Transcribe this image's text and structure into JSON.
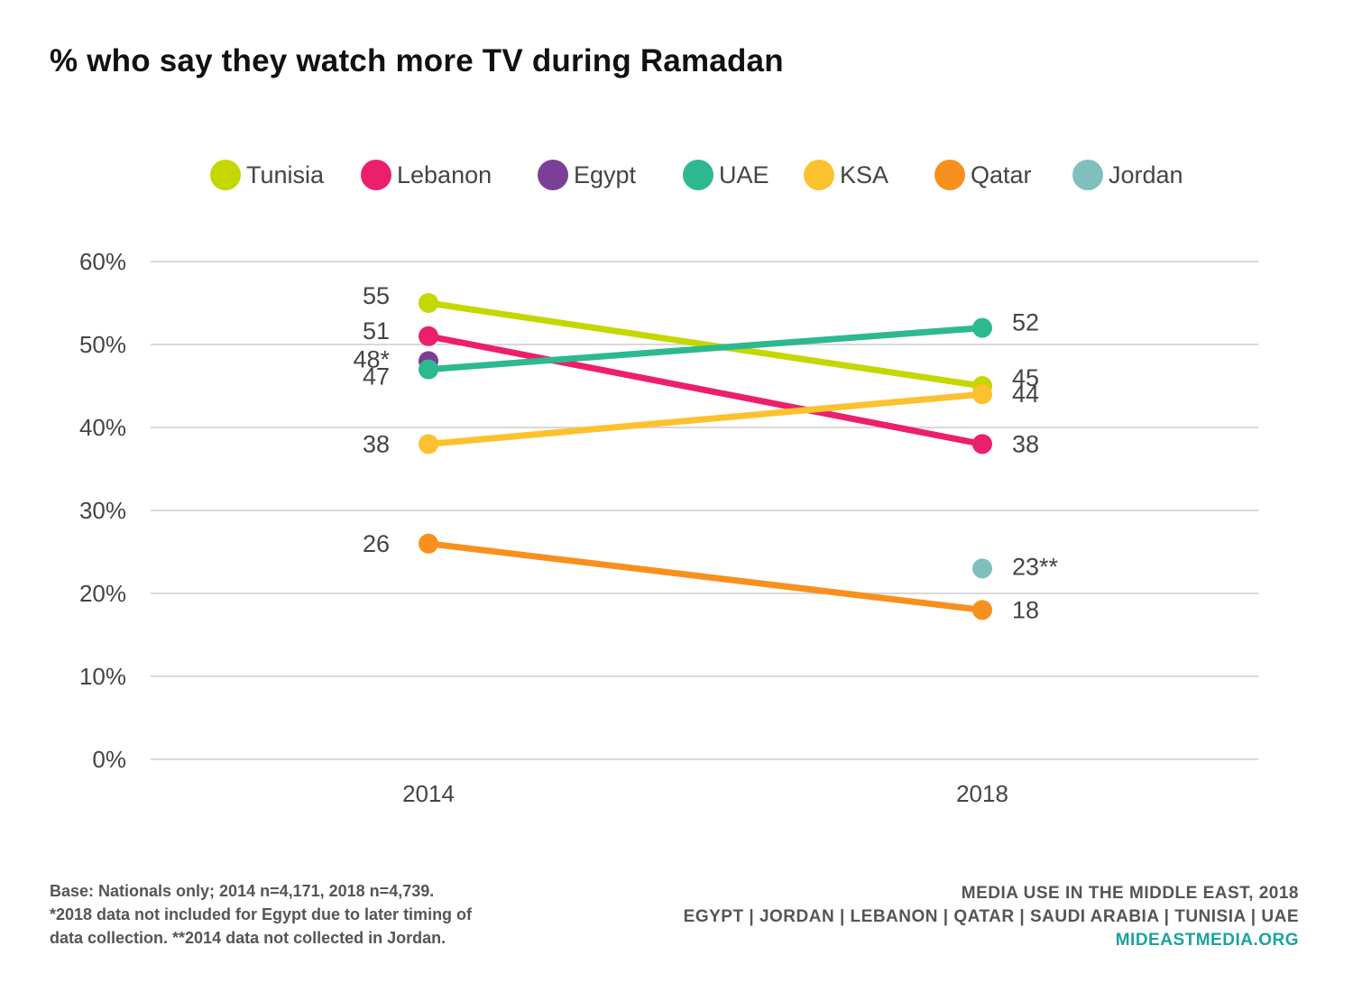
{
  "title": "% who say they watch more TV during Ramadan",
  "chart_data": {
    "type": "line",
    "categories": [
      "2014",
      "2018"
    ],
    "ylim": [
      0,
      60
    ],
    "yticks": [
      "0%",
      "10%",
      "20%",
      "30%",
      "40%",
      "50%",
      "60%"
    ],
    "grid": true,
    "legend_position": "top",
    "series": [
      {
        "name": "Tunisia",
        "color": "#c5d700",
        "values": [
          55,
          45
        ],
        "labels": [
          "55",
          "45"
        ]
      },
      {
        "name": "Lebanon",
        "color": "#ec1f6c",
        "values": [
          51,
          38
        ],
        "labels": [
          "51",
          "38"
        ]
      },
      {
        "name": "Egypt",
        "color": "#7b3f98",
        "values": [
          48,
          null
        ],
        "labels": [
          "48*",
          null
        ]
      },
      {
        "name": "UAE",
        "color": "#2db98f",
        "values": [
          47,
          52
        ],
        "labels": [
          "47",
          "52"
        ]
      },
      {
        "name": "KSA",
        "color": "#fcc12e",
        "values": [
          38,
          44
        ],
        "labels": [
          "38",
          "44"
        ]
      },
      {
        "name": "Qatar",
        "color": "#f7901e",
        "values": [
          26,
          18
        ],
        "labels": [
          "26",
          "18"
        ]
      },
      {
        "name": "Jordan",
        "color": "#7fbfbd",
        "values": [
          null,
          23
        ],
        "labels": [
          null,
          "23**"
        ]
      }
    ]
  },
  "footer": {
    "base": "Base: Nationals only; 2014 n=4,171, 2018 n=4,739.",
    "note1": "*2018 data not included for Egypt due to later timing of",
    "note2": "data collection. **2014 data not collected in Jordan.",
    "source1": "MEDIA USE IN THE MIDDLE EAST, 2018",
    "source2": "EGYPT | JORDAN | LEBANON | QATAR | SAUDI ARABIA | TUNISIA | UAE",
    "site": "MIDEASTMEDIA.ORG"
  }
}
